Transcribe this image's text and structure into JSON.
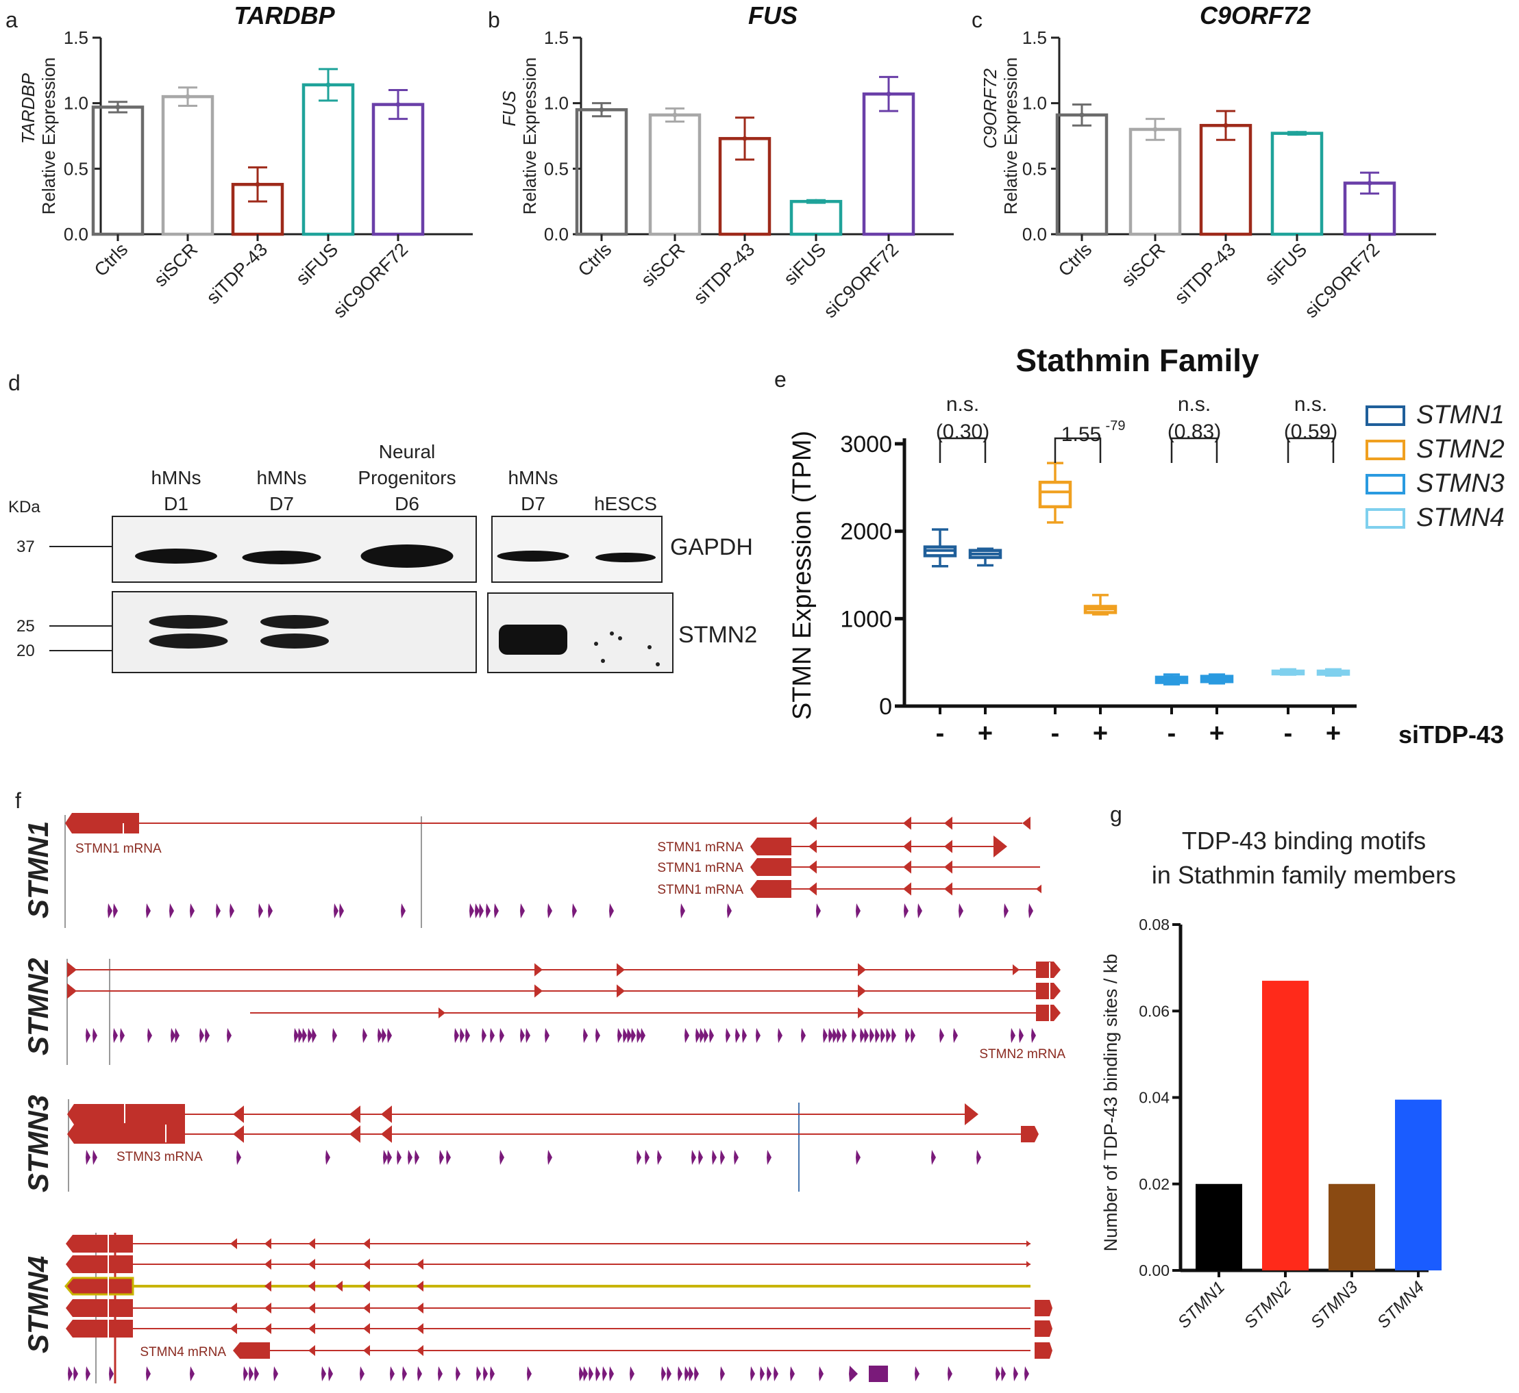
{
  "colors": {
    "ctrl": "#6b6b6b",
    "siscr": "#a8a8a8",
    "sitdp": "#9e2a1a",
    "sifus": "#1fa39a",
    "sic9": "#6a3fa8",
    "stmn1": "#1f5f9a",
    "stmn2": "#f0a020",
    "stmn3": "#2a9ae0",
    "stmn4": "#7fd0ee",
    "g_stmn1": "#000000",
    "g_stmn2": "#ff2a1a",
    "g_stmn3": "#8a4a12",
    "g_stmn4": "#1a5cff",
    "gene": "#c0302a",
    "gene_label": "#8a2a20",
    "motif": "#7a1a7a",
    "highlight": "#c8b400"
  },
  "chart_data": [
    {
      "panel": "a",
      "type": "bar",
      "title": "TARDBP",
      "ylabel_italic": "TARDBP",
      "ylabel": "Relative Expression",
      "categories": [
        "Ctrls",
        "siSCR",
        "siTDP-43",
        "siFUS",
        "siC9ORF72"
      ],
      "values": [
        0.97,
        1.05,
        0.38,
        1.14,
        0.99
      ],
      "errors": [
        0.04,
        0.07,
        0.13,
        0.12,
        0.11
      ],
      "ylim": [
        0,
        1.5
      ],
      "yticks": [
        "0.0",
        "0.5",
        "1.0",
        "1.5"
      ]
    },
    {
      "panel": "b",
      "type": "bar",
      "title": "FUS",
      "ylabel_italic": "FUS",
      "ylabel": "Relative Expression",
      "categories": [
        "Ctrls",
        "siSCR",
        "siTDP-43",
        "siFUS",
        "siC9ORF72"
      ],
      "values": [
        0.95,
        0.91,
        0.73,
        0.25,
        1.07
      ],
      "errors": [
        0.05,
        0.05,
        0.16,
        0.01,
        0.13
      ],
      "ylim": [
        0,
        1.5
      ],
      "yticks": [
        "0.0",
        "0.5",
        "1.0",
        "1.5"
      ]
    },
    {
      "panel": "c",
      "type": "bar",
      "title": "C9ORF72",
      "ylabel_italic": "C9ORF72",
      "ylabel": "Relative Expression",
      "categories": [
        "Ctrls",
        "siSCR",
        "siTDP-43",
        "siFUS",
        "siC9ORF72"
      ],
      "values": [
        0.91,
        0.8,
        0.83,
        0.77,
        0.39
      ],
      "errors": [
        0.08,
        0.08,
        0.11,
        0.01,
        0.08
      ],
      "ylim": [
        0,
        1.5
      ],
      "yticks": [
        "0.0",
        "0.5",
        "1.0",
        "1.5"
      ]
    },
    {
      "panel": "e",
      "type": "box",
      "title": "Stathmin Family",
      "ylabel": "STMN Expression (TPM)",
      "xlabel": "siTDP-43",
      "ylim": [
        0,
        3000
      ],
      "yticks": [
        "0",
        "1000",
        "2000",
        "3000"
      ],
      "groups": [
        {
          "gene": "STMN1",
          "sig": "n.s.",
          "p": "(0.30)",
          "boxes": [
            {
              "treat": "-",
              "min": 1600,
              "q1": 1720,
              "med": 1780,
              "q3": 1820,
              "max": 2020
            },
            {
              "treat": "+",
              "min": 1610,
              "q1": 1700,
              "med": 1740,
              "q3": 1780,
              "max": 1800
            }
          ]
        },
        {
          "gene": "STMN2",
          "sig": "1.55",
          "p": "-79",
          "boxes": [
            {
              "treat": "-",
              "min": 2100,
              "q1": 2280,
              "med": 2450,
              "q3": 2560,
              "max": 2780
            },
            {
              "treat": "+",
              "min": 1050,
              "q1": 1070,
              "med": 1110,
              "q3": 1140,
              "max": 1270
            }
          ]
        },
        {
          "gene": "STMN3",
          "sig": "n.s.",
          "p": "(0.83)",
          "boxes": [
            {
              "treat": "-",
              "min": 250,
              "q1": 270,
              "med": 300,
              "q3": 330,
              "max": 360
            },
            {
              "treat": "+",
              "min": 260,
              "q1": 280,
              "med": 310,
              "q3": 340,
              "max": 360
            }
          ]
        },
        {
          "gene": "STMN4",
          "sig": "n.s.",
          "p": "(0.59)",
          "boxes": [
            {
              "treat": "-",
              "min": 360,
              "q1": 370,
              "med": 385,
              "q3": 400,
              "max": 420
            },
            {
              "treat": "+",
              "min": 350,
              "q1": 365,
              "med": 380,
              "q3": 400,
              "max": 420
            }
          ]
        }
      ],
      "legend": [
        "STMN1",
        "STMN2",
        "STMN3",
        "STMN4"
      ]
    },
    {
      "panel": "g",
      "type": "bar",
      "title_line1": "TDP-43 binding motifs",
      "title_line2": "in Stathmin family members",
      "ylabel": "Number of TDP-43 binding sites / kb",
      "categories": [
        "STMN1",
        "STMN2",
        "STMN3",
        "STMN4"
      ],
      "values": [
        0.02,
        0.067,
        0.02,
        0.0395
      ],
      "ylim": [
        0,
        0.08
      ],
      "yticks": [
        "0.00",
        "0.02",
        "0.04",
        "0.06",
        "0.08"
      ]
    }
  ],
  "western": {
    "panel": "d",
    "kda_label": "KDa",
    "markers": [
      "37",
      "25",
      "20"
    ],
    "left_lanes": [
      [
        "hMNs",
        "D1"
      ],
      [
        "hMNs",
        "D7"
      ],
      [
        "Neural",
        "Progenitors",
        "D6"
      ]
    ],
    "right_lanes": [
      [
        "hMNs",
        "D7"
      ],
      [
        "hESCS"
      ]
    ],
    "bands": [
      "GAPDH",
      "STMN2"
    ]
  },
  "genes": {
    "panel": "f",
    "tracks": [
      "STMN1",
      "STMN2",
      "STMN3",
      "STMN4"
    ],
    "mrna_labels": {
      "STMN1": [
        "STMN1 mRNA",
        "STMN1 mRNA",
        "STMN1 mRNA",
        "STMN1 mRNA"
      ],
      "STMN2": [
        "STMN2 mRNA"
      ],
      "STMN3": [
        "STMN3 mRNA"
      ],
      "STMN4": [
        "STMN4 mRNA"
      ]
    }
  },
  "panel_letters": [
    "a",
    "b",
    "c",
    "d",
    "e",
    "f",
    "g"
  ]
}
